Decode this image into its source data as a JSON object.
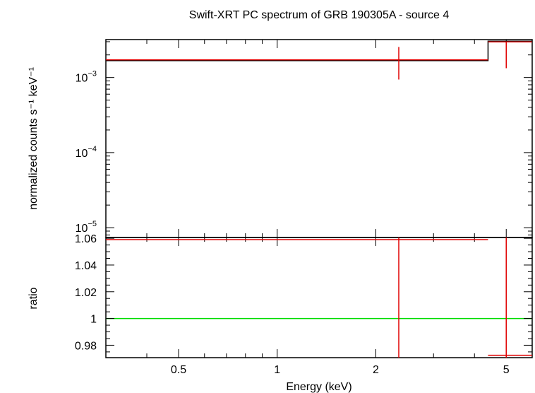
{
  "chart_data": [
    {
      "type": "scatter",
      "panel": "spectrum",
      "title": "Swift-XRT PC spectrum of GRB 190305A - source 4",
      "ylabel": "normalized counts s⁻¹ keV⁻¹",
      "xscale": "log",
      "yscale": "log",
      "xlim": [
        0.3,
        6.0
      ],
      "ylim": [
        7.4e-06,
        0.0032
      ],
      "y_ticks": [
        {
          "value": 0.001,
          "mantissa": "10",
          "exp": "−3"
        },
        {
          "value": 0.0001,
          "mantissa": "10",
          "exp": "−4"
        },
        {
          "value": 1e-05,
          "mantissa": "10",
          "exp": "−5"
        }
      ],
      "data_points": [
        {
          "x": 2.35,
          "x_lo": 0.3,
          "x_hi": 4.4,
          "y": 0.00172,
          "y_lo": 0.00094,
          "y_hi": 0.00255
        },
        {
          "x": 5.0,
          "x_lo": 4.4,
          "x_hi": 6.0,
          "y": 0.00298,
          "y_lo": 0.00133,
          "y_hi": 0.00298
        }
      ],
      "model_steps": [
        {
          "x_lo": 0.3,
          "x_hi": 4.4,
          "y": 0.00168
        },
        {
          "x_lo": 4.4,
          "x_hi": 6.0,
          "y": 0.00305
        }
      ],
      "colors": {
        "data": "#e00000",
        "model": "#000000"
      }
    },
    {
      "type": "scatter",
      "panel": "ratio",
      "xlabel": "Energy (keV)",
      "ylabel": "ratio",
      "xscale": "log",
      "xlim": [
        0.3,
        6.0
      ],
      "ylim": [
        0.9707,
        1.0606
      ],
      "x_ticks": [
        {
          "value": 0.5,
          "label": "0.5"
        },
        {
          "value": 1,
          "label": "1"
        },
        {
          "value": 2,
          "label": "2"
        },
        {
          "value": 5,
          "label": "5"
        }
      ],
      "y_ticks": [
        {
          "value": 1.06,
          "label": "1.06"
        },
        {
          "value": 1.04,
          "label": "1.04"
        },
        {
          "value": 1.02,
          "label": "1.02"
        },
        {
          "value": 1.0,
          "label": "1"
        },
        {
          "value": 0.98,
          "label": "0.98"
        }
      ],
      "data_points": [
        {
          "x": 2.35,
          "x_lo": 0.3,
          "x_hi": 4.4,
          "y": 1.059,
          "y_lo": 0.9707,
          "y_hi": 1.0606
        },
        {
          "x": 5.0,
          "x_lo": 4.4,
          "x_hi": 6.0,
          "y": 0.9725,
          "y_lo": 0.9707,
          "y_hi": 1.0606
        }
      ],
      "reference_line": 1.0,
      "colors": {
        "data": "#e00000",
        "reference": "#00dd00"
      }
    }
  ]
}
